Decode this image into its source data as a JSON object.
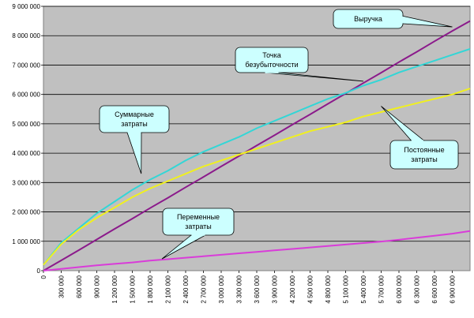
{
  "chart_data": {
    "type": "line",
    "title": "",
    "xlabel": "",
    "ylabel": "",
    "ylim": [
      0,
      9000000
    ],
    "xlim": [
      0,
      7200000
    ],
    "grid": true,
    "y_ticks": [
      "0",
      "1 000 000",
      "2 000 000",
      "3 000 000",
      "4 000 000",
      "5 000 000",
      "6 000 000",
      "7 000 000",
      "8 000 000",
      "9 000 000"
    ],
    "x_ticks": [
      "0",
      "300 000",
      "600 000",
      "900 000",
      "1 200 000",
      "1 500 000",
      "1 800 000",
      "2 100 000",
      "2 400 000",
      "2 700 000",
      "3 000 000",
      "3 300 000",
      "3 600 000",
      "3 900 000",
      "4 200 000",
      "4 500 000",
      "4 800 000",
      "5 100 000",
      "5 400 000",
      "5 700 000",
      "6 000 000",
      "6 300 000",
      "6 600 000",
      "6 900 000"
    ],
    "x": [
      0,
      300000,
      600000,
      900000,
      1200000,
      1500000,
      1800000,
      2100000,
      2400000,
      2700000,
      3000000,
      3300000,
      3600000,
      3900000,
      4200000,
      4500000,
      4800000,
      5100000,
      5400000,
      5700000,
      6000000,
      6300000,
      6600000,
      6900000,
      7200000
    ],
    "series": [
      {
        "name": "Выручка",
        "color": "#8b1a8b",
        "values": [
          0,
          350000,
          700000,
          1060000,
          1420000,
          1770000,
          2130000,
          2480000,
          2840000,
          3190000,
          3550000,
          3900000,
          4260000,
          4610000,
          4970000,
          5320000,
          5680000,
          6030000,
          6390000,
          6740000,
          7100000,
          7450000,
          7810000,
          8160000,
          8500000
        ]
      },
      {
        "name": "Суммарные затраты",
        "color": "#33d6d6",
        "values": [
          200000,
          950000,
          1450000,
          1950000,
          2350000,
          2750000,
          3100000,
          3400000,
          3750000,
          4050000,
          4300000,
          4550000,
          4850000,
          5100000,
          5350000,
          5600000,
          5850000,
          6050000,
          6300000,
          6500000,
          6750000,
          6950000,
          7150000,
          7350000,
          7550000
        ]
      },
      {
        "name": "Постоянные затраты",
        "color": "#f0f01e",
        "values": [
          200000,
          900000,
          1400000,
          1800000,
          2150000,
          2500000,
          2800000,
          3050000,
          3300000,
          3550000,
          3750000,
          3950000,
          4150000,
          4350000,
          4550000,
          4750000,
          4900000,
          5050000,
          5250000,
          5400000,
          5550000,
          5700000,
          5850000,
          6000000,
          6200000
        ]
      },
      {
        "name": "Переменные затраты",
        "color": "#d93cd9",
        "values": [
          0,
          60000,
          120000,
          180000,
          230000,
          280000,
          340000,
          390000,
          440000,
          490000,
          540000,
          590000,
          640000,
          690000,
          740000,
          790000,
          840000,
          890000,
          940000,
          990000,
          1050000,
          1120000,
          1190000,
          1260000,
          1350000
        ]
      }
    ],
    "annotations": [
      {
        "text": "Выручка",
        "target_x": 6900000,
        "target_y": 8300000
      },
      {
        "text": "Точка безубыточности",
        "target_x": 5400000,
        "target_y": 6450000
      },
      {
        "text": "Суммарные затраты",
        "target_x": 1650000,
        "target_y": 3300000
      },
      {
        "text": "Постоянные затраты",
        "target_x": 5700000,
        "target_y": 5600000
      },
      {
        "text": "Переменные затраты",
        "target_x": 2000000,
        "target_y": 400000
      }
    ]
  }
}
